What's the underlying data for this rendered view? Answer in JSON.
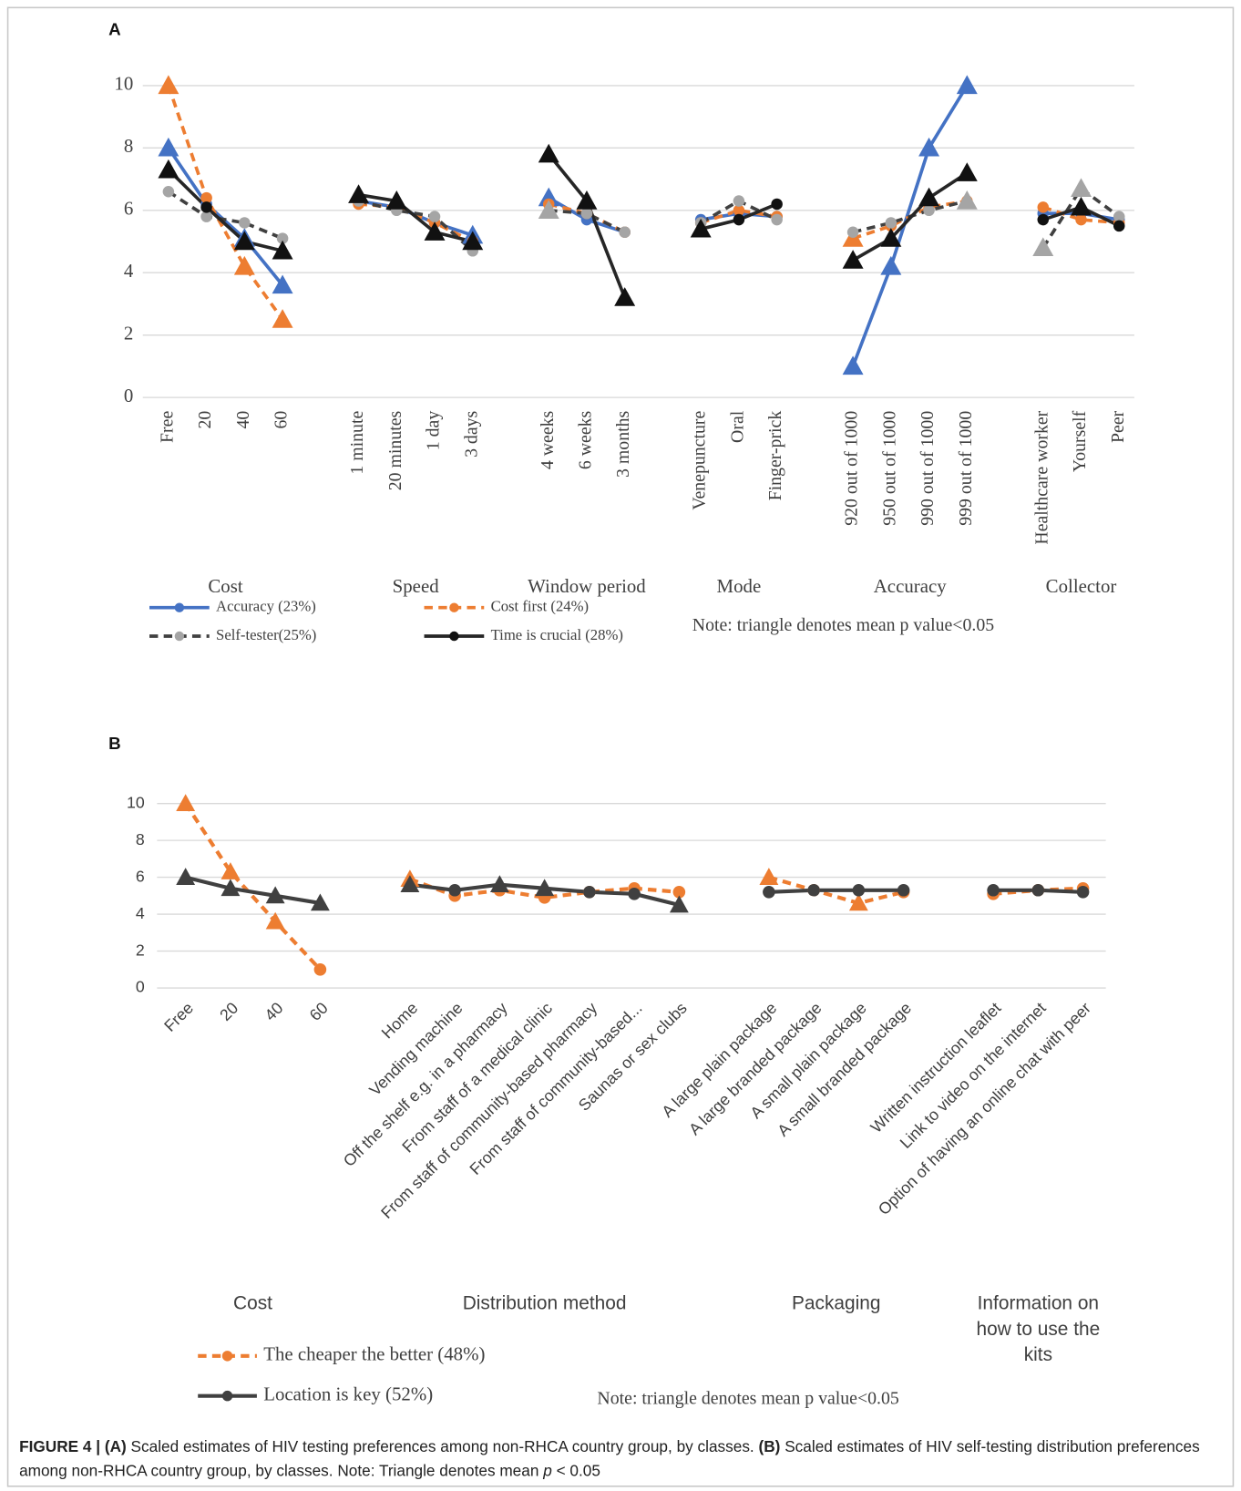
{
  "chart_data": [
    {
      "type": "line",
      "panel": "A",
      "categories": [
        "Free",
        "20",
        "40",
        "60",
        null,
        "1 minute",
        "20 minutes",
        "1 day",
        "3 days",
        null,
        "4 weeks",
        "6 weeks",
        "3 months",
        null,
        "Venepuncture",
        "Oral",
        "Finger-prick",
        null,
        "920 out of 1000",
        "950 out of 1000",
        "990 out of 1000",
        "999 out of 1000",
        null,
        "Healthcare worker",
        "Yourself",
        "Peer"
      ],
      "groups": [
        "Cost",
        "Speed",
        "Window period",
        "Mode",
        "Accuracy",
        "Collector"
      ],
      "ylim": [
        0,
        10
      ],
      "yticks": [
        0,
        2,
        4,
        6,
        8,
        10
      ],
      "grid": true,
      "note": "Note: triangle denotes mean p value<0.05",
      "series": [
        {
          "name": "Accuracy (23%)",
          "color": "#4472c4",
          "line_color": "#4472c4",
          "dash": false,
          "values": [
            8.0,
            6.2,
            5.1,
            3.6,
            null,
            6.3,
            6.1,
            5.6,
            5.2,
            null,
            6.4,
            5.7,
            5.3,
            null,
            5.7,
            5.9,
            5.8,
            null,
            1.0,
            4.2,
            8.0,
            10.0,
            null,
            5.9,
            5.9,
            5.7
          ],
          "markers": [
            "triangle",
            "circle",
            "triangle",
            "triangle",
            null,
            "circle",
            "circle",
            "circle",
            "triangle",
            null,
            "triangle",
            "circle",
            "circle",
            null,
            "circle",
            "circle",
            "circle",
            null,
            "triangle",
            "triangle",
            "triangle",
            "triangle",
            null,
            "circle",
            "circle",
            "circle"
          ]
        },
        {
          "name": "Cost first (24%)",
          "color": "#ed7d31",
          "line_color": "#ed7d31",
          "dash": true,
          "values": [
            10.0,
            6.4,
            4.2,
            2.5,
            null,
            6.2,
            6.1,
            5.6,
            5.0,
            null,
            6.2,
            5.9,
            5.3,
            null,
            5.6,
            6.0,
            5.8,
            null,
            5.1,
            5.5,
            6.1,
            6.3,
            null,
            6.1,
            5.7,
            5.6
          ],
          "markers": [
            "triangle",
            "circle",
            "triangle",
            "triangle",
            null,
            "circle",
            "circle",
            "circle",
            "circle",
            null,
            "circle",
            "circle",
            "circle",
            null,
            "circle",
            "circle",
            "circle",
            null,
            "triangle",
            "circle",
            "circle",
            "circle",
            null,
            "circle",
            "circle",
            "circle"
          ]
        },
        {
          "name": "Self-tester(25%)",
          "color": "#a5a5a5",
          "line_color": "#404040",
          "dash": true,
          "values": [
            6.6,
            5.8,
            5.6,
            5.1,
            null,
            6.3,
            6.0,
            5.8,
            4.7,
            null,
            6.0,
            5.9,
            5.3,
            null,
            5.6,
            6.3,
            5.7,
            null,
            5.3,
            5.6,
            6.0,
            6.3,
            null,
            4.8,
            6.7,
            5.8
          ],
          "markers": [
            "circle",
            "circle",
            "circle",
            "circle",
            null,
            "circle",
            "circle",
            "circle",
            "circle",
            null,
            "triangle",
            "circle",
            "circle",
            null,
            "circle",
            "circle",
            "circle",
            null,
            "circle",
            "circle",
            "circle",
            "triangle",
            null,
            "triangle",
            "triangle",
            "circle"
          ]
        },
        {
          "name": "Time is crucial (28%)",
          "color": "#111111",
          "line_color": "#262626",
          "dash": false,
          "values": [
            7.3,
            6.1,
            5.0,
            4.7,
            null,
            6.5,
            6.3,
            5.3,
            5.0,
            null,
            7.8,
            6.3,
            3.2,
            null,
            5.4,
            5.7,
            6.2,
            null,
            4.4,
            5.1,
            6.4,
            7.2,
            null,
            5.7,
            6.1,
            5.5
          ],
          "markers": [
            "triangle",
            "circle",
            "triangle",
            "triangle",
            null,
            "triangle",
            "triangle",
            "triangle",
            "triangle",
            null,
            "triangle",
            "triangle",
            "triangle",
            null,
            "triangle",
            "circle",
            "circle",
            null,
            "triangle",
            "triangle",
            "triangle",
            "triangle",
            null,
            "circle",
            "triangle",
            "circle"
          ]
        }
      ]
    },
    {
      "type": "line",
      "panel": "B",
      "categories": [
        "Free",
        "20",
        "40",
        "60",
        null,
        "Home",
        "Vending machine",
        "Off the shelf e.g. in a pharmacy",
        "From staff of a medical clinic",
        "From staff of community-based pharmacy",
        "From staff of community-based...",
        "Saunas or sex clubs",
        null,
        "A large plain package",
        "A large branded package",
        "A small plain package",
        "A small branded package",
        null,
        "Written instruction leaflet",
        "Link to video on the internet",
        "Option of having an online chat with peer"
      ],
      "groups": [
        "Cost",
        "Distribution method",
        "Packaging",
        "Information on how to use the kits"
      ],
      "ylim": [
        0,
        10
      ],
      "yticks": [
        0,
        2,
        4,
        6,
        8,
        10
      ],
      "grid": true,
      "note": "Note: triangle denotes mean p value<0.05",
      "series": [
        {
          "name": "The cheaper the better  (48%)",
          "color": "#ed7d31",
          "line_color": "#ed7d31",
          "dash": true,
          "values": [
            10.0,
            6.3,
            3.6,
            1.0,
            null,
            5.9,
            5.0,
            5.3,
            4.9,
            5.2,
            5.4,
            5.2,
            null,
            6.0,
            5.3,
            4.6,
            5.2,
            null,
            5.1,
            5.3,
            5.4
          ],
          "markers": [
            "triangle",
            "triangle",
            "triangle",
            "circle",
            null,
            "triangle",
            "circle",
            "circle",
            "circle",
            "circle",
            "circle",
            "circle",
            null,
            "triangle",
            "circle",
            "triangle",
            "circle",
            null,
            "circle",
            "circle",
            "circle"
          ]
        },
        {
          "name": "Location is key (52%)",
          "color": "#404040",
          "line_color": "#404040",
          "dash": false,
          "values": [
            6.0,
            5.4,
            5.0,
            4.6,
            null,
            5.6,
            5.3,
            5.6,
            5.4,
            5.2,
            5.1,
            4.5,
            null,
            5.2,
            5.3,
            5.3,
            5.3,
            null,
            5.3,
            5.3,
            5.2
          ],
          "markers": [
            "triangle",
            "triangle",
            "triangle",
            "triangle",
            null,
            "triangle",
            "circle",
            "triangle",
            "triangle",
            "circle",
            "circle",
            "triangle",
            null,
            "circle",
            "circle",
            "circle",
            "circle",
            null,
            "circle",
            "circle",
            "circle"
          ]
        }
      ]
    }
  ],
  "caption": [
    "FIGURE 4 | (A)",
    " Scaled estimates of HIV testing preferences among non-RHCA country group, by classes. ",
    "(B)",
    " Scaled estimates of HIV self-testing distribution preferences among non-RHCA country group, by classes. Note: Triangle denotes mean ",
    "p",
    " < 0.05"
  ]
}
